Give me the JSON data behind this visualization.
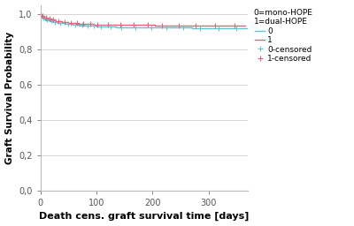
{
  "title_annotation": "0=mono-HOPE\n1=dual-HOPE",
  "xlabel": "Death cens. graft survival time [days]",
  "ylabel": "Graft Survival Probability",
  "xlim": [
    0,
    370
  ],
  "ylim": [
    0.0,
    1.05
  ],
  "yticks": [
    0.0,
    0.2,
    0.4,
    0.6,
    0.8,
    1.0
  ],
  "xticks": [
    0,
    100,
    200,
    300
  ],
  "color_0": "#5bc8d0",
  "color_1": "#e8607a",
  "background": "#ffffff",
  "km_0_x": [
    0,
    4,
    4,
    9,
    9,
    16,
    16,
    22,
    22,
    30,
    30,
    45,
    45,
    58,
    58,
    68,
    68,
    78,
    78,
    88,
    88,
    100,
    100,
    115,
    115,
    135,
    135,
    160,
    160,
    185,
    185,
    210,
    210,
    240,
    240,
    270,
    270,
    305,
    305,
    340,
    340,
    370
  ],
  "km_0_y": [
    1.0,
    1.0,
    0.975,
    0.975,
    0.965,
    0.965,
    0.958,
    0.958,
    0.951,
    0.951,
    0.947,
    0.947,
    0.942,
    0.942,
    0.938,
    0.938,
    0.935,
    0.935,
    0.933,
    0.933,
    0.931,
    0.931,
    0.929,
    0.929,
    0.927,
    0.927,
    0.925,
    0.925,
    0.924,
    0.924,
    0.923,
    0.923,
    0.922,
    0.922,
    0.921,
    0.921,
    0.92,
    0.92,
    0.919,
    0.919,
    0.919,
    0.919
  ],
  "km_1_x": [
    0,
    2,
    2,
    7,
    7,
    13,
    13,
    20,
    20,
    28,
    28,
    38,
    38,
    50,
    50,
    62,
    62,
    72,
    72,
    83,
    83,
    95,
    95,
    110,
    110,
    130,
    130,
    155,
    155,
    180,
    180,
    205,
    205,
    235,
    235,
    265,
    265,
    295,
    295,
    330,
    330,
    365
  ],
  "km_1_y": [
    1.0,
    1.0,
    0.985,
    0.985,
    0.978,
    0.978,
    0.97,
    0.97,
    0.963,
    0.963,
    0.957,
    0.957,
    0.952,
    0.952,
    0.948,
    0.948,
    0.945,
    0.945,
    0.943,
    0.943,
    0.941,
    0.941,
    0.94,
    0.94,
    0.939,
    0.939,
    0.938,
    0.938,
    0.937,
    0.937,
    0.936,
    0.936,
    0.935,
    0.935,
    0.934,
    0.934,
    0.934,
    0.934,
    0.933,
    0.933,
    0.933,
    0.933
  ],
  "censored_0_x": [
    6,
    12,
    19,
    26,
    35,
    50,
    62,
    74,
    84,
    95,
    108,
    125,
    145,
    170,
    198,
    225,
    255,
    285,
    318,
    350
  ],
  "censored_0_y": [
    0.978,
    0.968,
    0.961,
    0.953,
    0.948,
    0.943,
    0.939,
    0.936,
    0.934,
    0.931,
    0.929,
    0.927,
    0.925,
    0.924,
    0.923,
    0.922,
    0.921,
    0.92,
    0.919,
    0.919
  ],
  "censored_1_x": [
    4,
    10,
    16,
    23,
    32,
    43,
    55,
    66,
    77,
    89,
    102,
    120,
    142,
    167,
    192,
    217,
    247,
    277,
    312,
    347
  ],
  "censored_1_y": [
    0.988,
    0.98,
    0.973,
    0.966,
    0.959,
    0.954,
    0.95,
    0.946,
    0.944,
    0.942,
    0.94,
    0.939,
    0.938,
    0.937,
    0.936,
    0.935,
    0.935,
    0.934,
    0.933,
    0.933
  ]
}
